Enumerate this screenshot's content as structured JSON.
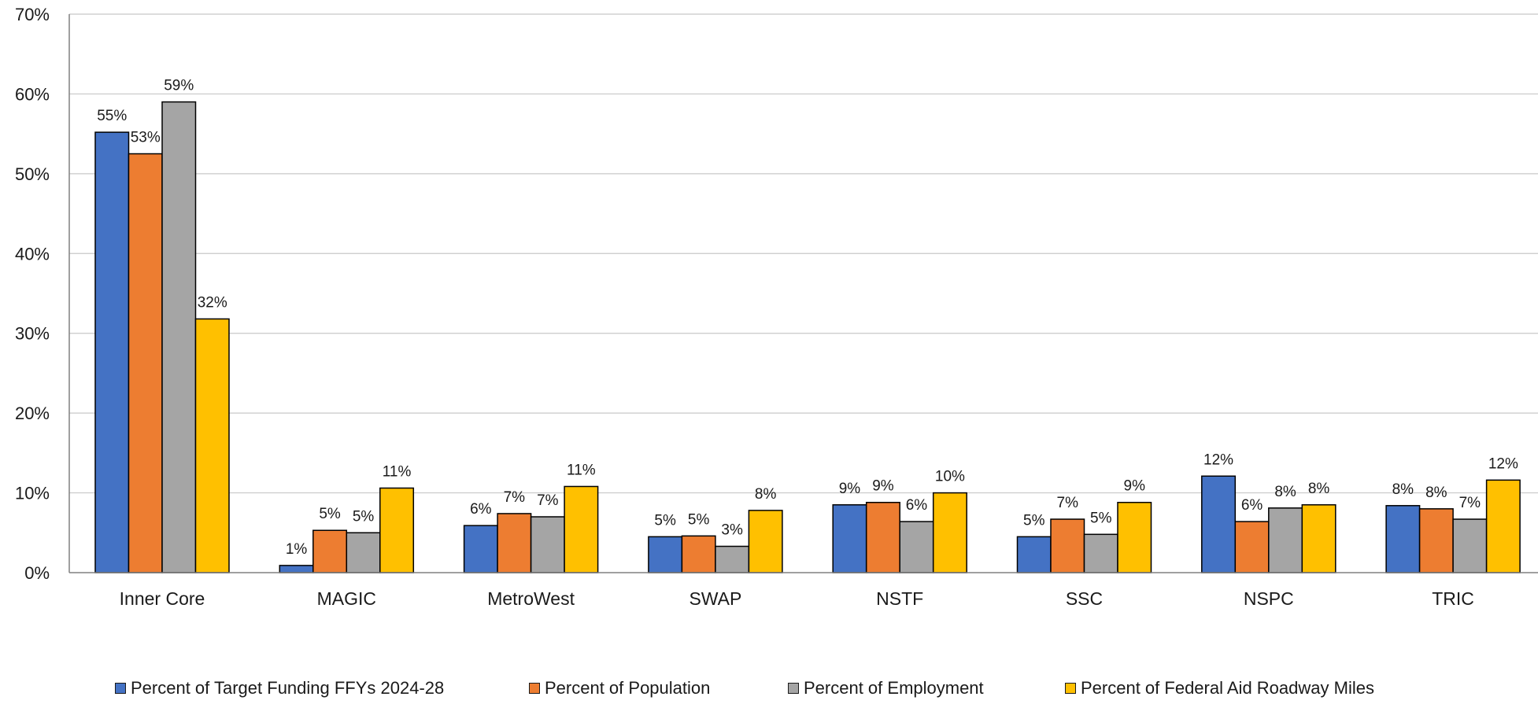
{
  "chart_data": {
    "type": "bar",
    "title": "",
    "xlabel": "",
    "ylabel": "",
    "ylim": [
      0,
      70
    ],
    "yticks": [
      "0%",
      "10%",
      "20%",
      "30%",
      "40%",
      "50%",
      "60%",
      "70%"
    ],
    "grid": true,
    "legend_position": "bottom",
    "categories": [
      "Inner Core",
      "MAGIC",
      "MetroWest",
      "SWAP",
      "NSTF",
      "SSC",
      "NSPC",
      "TRIC"
    ],
    "series": [
      {
        "name": "Percent of Target Funding FFYs 2024-28",
        "color": "#4472C4",
        "values": [
          55.2,
          0.9,
          5.9,
          4.5,
          8.5,
          4.5,
          12.1,
          8.4
        ],
        "labels": [
          "55%",
          "1%",
          "6%",
          "5%",
          "9%",
          "5%",
          "12%",
          "8%"
        ]
      },
      {
        "name": "Percent of Population",
        "color": "#ED7D31",
        "values": [
          52.5,
          5.3,
          7.4,
          4.6,
          8.8,
          6.7,
          6.4,
          8.0
        ],
        "labels": [
          "53%",
          "5%",
          "7%",
          "5%",
          "9%",
          "7%",
          "6%",
          "8%"
        ]
      },
      {
        "name": "Percent of Employment",
        "color": "#A5A5A5",
        "values": [
          59.0,
          5.0,
          7.0,
          3.3,
          6.4,
          4.8,
          8.1,
          6.7
        ],
        "labels": [
          "59%",
          "5%",
          "7%",
          "3%",
          "6%",
          "5%",
          "8%",
          "7%"
        ]
      },
      {
        "name": "Percent of Federal Aid Roadway Miles",
        "color": "#FFC000",
        "values": [
          31.8,
          10.6,
          10.8,
          7.8,
          10.0,
          8.8,
          8.5,
          11.6
        ],
        "labels": [
          "32%",
          "11%",
          "11%",
          "8%",
          "10%",
          "9%",
          "8%",
          "12%"
        ]
      }
    ]
  }
}
